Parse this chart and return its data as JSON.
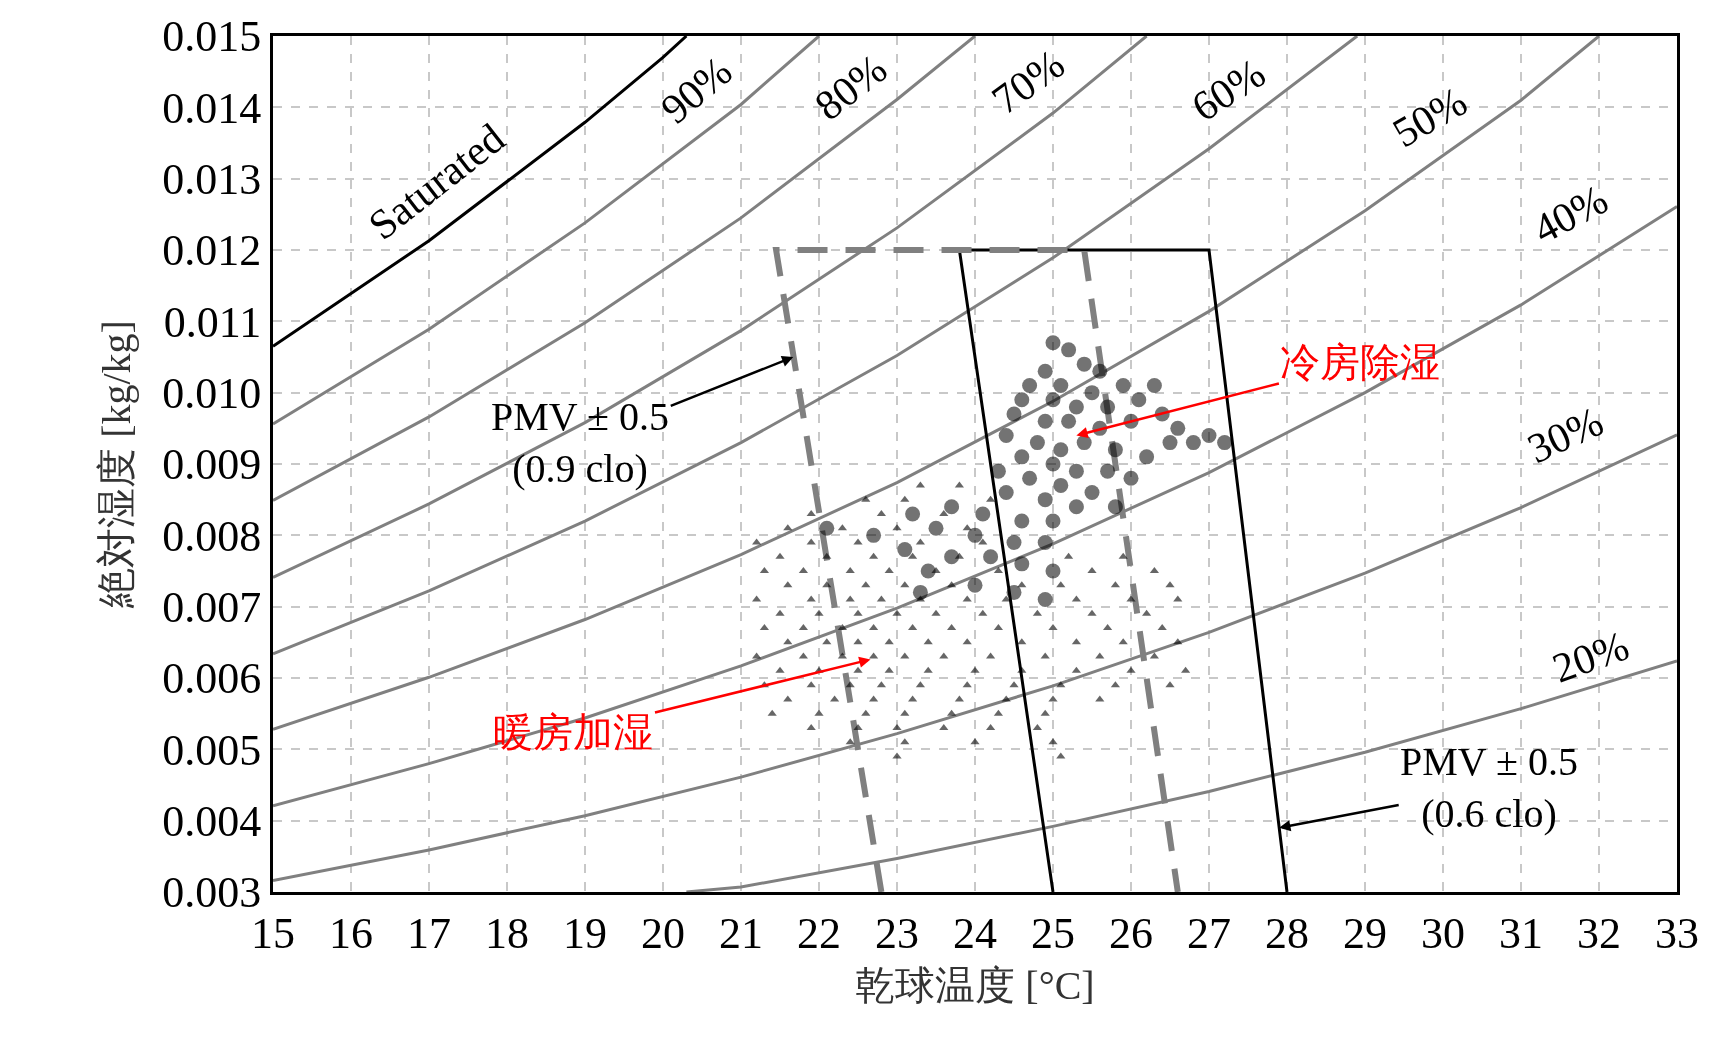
{
  "chart_data": {
    "type": "line",
    "xlabel": "乾球温度 [°C]",
    "ylabel": "絶対湿度 [kg/kg]",
    "xlim": [
      15,
      33
    ],
    "xticks": [
      15,
      16,
      17,
      18,
      19,
      20,
      21,
      22,
      23,
      24,
      25,
      26,
      27,
      28,
      29,
      30,
      31,
      32,
      33
    ],
    "ylim": [
      0.003,
      0.015
    ],
    "yticks": [
      0.003,
      0.004,
      0.005,
      0.006,
      0.007,
      0.008,
      0.009,
      {
        "value": 0.01,
        "label": "0.010"
      },
      0.011,
      0.012,
      0.013,
      0.014,
      0.015
    ],
    "grid": true,
    "series": [
      {
        "type": "line",
        "color": "#000000",
        "x": [
          15,
          17,
          19,
          20,
          20.3
        ],
        "values": [
          0.01065,
          0.01213,
          0.01379,
          0.0147,
          0.015
        ]
      },
      {
        "type": "line",
        "color": "#808080",
        "x": [
          15,
          17,
          19,
          21,
          22
        ],
        "values": [
          0.00956,
          0.01089,
          0.01238,
          0.01404,
          0.015
        ]
      },
      {
        "type": "line",
        "color": "#808080",
        "x": [
          15,
          17,
          19,
          21,
          23,
          24
        ],
        "values": [
          0.00849,
          0.00966,
          0.01098,
          0.01245,
          0.01411,
          0.015
        ]
      },
      {
        "type": "line",
        "color": "#808080",
        "x": [
          15,
          17,
          19,
          21,
          23,
          25,
          26.2
        ],
        "values": [
          0.00741,
          0.00844,
          0.00958,
          0.01087,
          0.01231,
          0.01392,
          0.015
        ]
      },
      {
        "type": "line",
        "color": "#808080",
        "x": [
          15,
          17,
          19,
          21,
          23,
          25,
          27,
          28.9
        ],
        "values": [
          0.00634,
          0.00722,
          0.0082,
          0.0093,
          0.01052,
          0.01189,
          0.01342,
          0.015
        ]
      },
      {
        "type": "line",
        "color": "#808080",
        "x": [
          15,
          17,
          19,
          21,
          23,
          25,
          27,
          29,
          31,
          32
        ],
        "values": [
          0.00528,
          0.00601,
          0.00682,
          0.00773,
          0.00874,
          0.00988,
          0.01114,
          0.01255,
          0.0141,
          0.015
        ]
      },
      {
        "type": "line",
        "color": "#808080",
        "x": [
          15,
          17,
          19,
          21,
          23,
          25,
          27,
          29,
          31,
          33
        ],
        "values": [
          0.00421,
          0.0048,
          0.00544,
          0.00617,
          0.00698,
          0.00788,
          0.00888,
          0.01,
          0.01123,
          0.01261
        ]
      },
      {
        "type": "line",
        "color": "#808080",
        "x": [
          15,
          17,
          19,
          21,
          23,
          25,
          27,
          29,
          31,
          33
        ],
        "values": [
          0.00316,
          0.00359,
          0.00407,
          0.00461,
          0.00522,
          0.00589,
          0.00664,
          0.00747,
          0.00839,
          0.00941
        ]
      },
      {
        "type": "line",
        "color": "#808080",
        "x": [
          20.3,
          21,
          23,
          25,
          27,
          29,
          31,
          33
        ],
        "values": [
          0.003,
          0.00307,
          0.00347,
          0.00392,
          0.00441,
          0.00496,
          0.00557,
          0.00624
        ]
      },
      {
        "color": "#000000",
        "line_style": "solid",
        "x": [
          25.0,
          23.8,
          27.0,
          28.0
        ],
        "values": [
          0.003,
          0.012,
          0.012,
          0.003
        ]
      },
      {
        "type": "line",
        "color": "#808080",
        "line_style": "dashed",
        "x": [
          22.8,
          21.45,
          25.4,
          26.6
        ],
        "values": [
          0.003,
          0.012,
          0.012,
          0.003
        ]
      },
      {
        "type": "scatter",
        "marker": "triangle",
        "color": "#000000",
        "x": [
          23.3,
          23.8,
          22.6,
          23.1,
          24.2,
          21.9,
          22.8,
          23.6,
          21.6,
          22.3,
          23.0,
          23.9,
          21.2,
          21.9,
          22.5,
          23.3,
          24.1,
          21.5,
          22.1,
          22.7,
          23.2,
          23.8,
          25.2,
          25.9,
          21.3,
          21.8,
          22.4,
          22.9,
          23.5,
          24.3,
          25.5,
          26.3,
          21.6,
          22.1,
          22.6,
          23.1,
          23.7,
          24.6,
          25.1,
          25.8,
          26.5,
          21.2,
          21.9,
          22.4,
          22.8,
          23.3,
          23.9,
          24.4,
          25.3,
          26.0,
          26.6,
          21.5,
          22.0,
          22.5,
          23.0,
          23.5,
          24.1,
          24.8,
          25.5,
          26.2,
          21.3,
          21.8,
          22.3,
          22.7,
          23.2,
          23.7,
          24.3,
          25.0,
          25.7,
          26.4,
          21.6,
          22.1,
          22.5,
          22.9,
          23.4,
          23.9,
          24.6,
          25.3,
          25.9,
          26.6,
          21.2,
          21.8,
          22.3,
          22.7,
          23.1,
          23.6,
          24.2,
          24.9,
          25.6,
          26.3,
          21.5,
          22.0,
          22.5,
          22.9,
          23.4,
          24.0,
          24.6,
          25.3,
          26.0,
          26.7,
          21.3,
          21.9,
          22.4,
          22.8,
          23.3,
          23.9,
          24.5,
          25.1,
          25.8,
          26.5,
          21.6,
          22.2,
          22.7,
          23.2,
          23.8,
          24.4,
          25.0,
          25.6,
          21.4,
          22.0,
          22.6,
          23.1,
          23.7,
          24.3,
          24.9,
          21.9,
          22.5,
          23.0,
          23.6,
          24.2,
          24.8,
          22.4,
          23.1,
          24.0,
          25.0,
          23.0,
          25.1
        ],
        "values": [
          0.0087,
          0.0087,
          0.0085,
          0.0085,
          0.0085,
          0.0083,
          0.0083,
          0.0083,
          0.0081,
          0.0081,
          0.0081,
          0.0081,
          0.0079,
          0.0079,
          0.0079,
          0.0079,
          0.0079,
          0.0077,
          0.0077,
          0.0077,
          0.0077,
          0.0077,
          0.0077,
          0.0077,
          0.0075,
          0.0075,
          0.0075,
          0.0075,
          0.0075,
          0.0075,
          0.0075,
          0.0075,
          0.0073,
          0.0073,
          0.0073,
          0.0073,
          0.0073,
          0.0073,
          0.0073,
          0.0073,
          0.0073,
          0.0071,
          0.0071,
          0.0071,
          0.0071,
          0.0071,
          0.0071,
          0.0071,
          0.0071,
          0.0071,
          0.0071,
          0.0069,
          0.0069,
          0.0069,
          0.0069,
          0.0069,
          0.0069,
          0.0069,
          0.0069,
          0.0069,
          0.0067,
          0.0067,
          0.0067,
          0.0067,
          0.0067,
          0.0067,
          0.0067,
          0.0067,
          0.0067,
          0.0067,
          0.0065,
          0.0065,
          0.0065,
          0.0065,
          0.0065,
          0.0065,
          0.0065,
          0.0065,
          0.0065,
          0.0065,
          0.0063,
          0.0063,
          0.0063,
          0.0063,
          0.0063,
          0.0063,
          0.0063,
          0.0063,
          0.0063,
          0.0063,
          0.0061,
          0.0061,
          0.0061,
          0.0061,
          0.0061,
          0.0061,
          0.0061,
          0.0061,
          0.0061,
          0.0061,
          0.0059,
          0.0059,
          0.0059,
          0.0059,
          0.0059,
          0.0059,
          0.0059,
          0.0059,
          0.0059,
          0.0059,
          0.0057,
          0.0057,
          0.0057,
          0.0057,
          0.0057,
          0.0057,
          0.0057,
          0.0057,
          0.0055,
          0.0055,
          0.0055,
          0.0055,
          0.0055,
          0.0055,
          0.0055,
          0.0053,
          0.0053,
          0.0053,
          0.0053,
          0.0053,
          0.0053,
          0.0051,
          0.0051,
          0.0051,
          0.0051,
          0.0049,
          0.0049
        ]
      },
      {
        "type": "scatter",
        "marker": "circle",
        "color": "#000000",
        "x": [
          25.0,
          25.2,
          25.4,
          24.9,
          25.6,
          24.7,
          25.1,
          25.5,
          25.9,
          24.6,
          25.0,
          25.3,
          25.7,
          26.1,
          24.5,
          24.9,
          25.2,
          25.6,
          26.0,
          26.4,
          26.6,
          27.0,
          27.2,
          26.8,
          24.4,
          24.8,
          25.1,
          25.4,
          25.8,
          26.2,
          24.6,
          25.0,
          25.3,
          25.7,
          26.0,
          24.3,
          24.7,
          25.1,
          25.5,
          24.4,
          24.9,
          25.3,
          25.8,
          23.7,
          24.1,
          24.6,
          25.0,
          23.2,
          23.5,
          24.0,
          24.5,
          24.9,
          22.7,
          23.1,
          23.7,
          24.2,
          24.6,
          25.0,
          23.4,
          24.0,
          24.5,
          24.9,
          23.3,
          22.1,
          26.3,
          26.5
        ],
        "values": [
          0.0107,
          0.0106,
          0.0104,
          0.0103,
          0.0103,
          0.0101,
          0.0101,
          0.01,
          0.0101,
          0.0099,
          0.0099,
          0.0098,
          0.0098,
          0.0099,
          0.0097,
          0.0096,
          0.0096,
          0.0095,
          0.0096,
          0.0097,
          0.0095,
          0.0094,
          0.0093,
          0.0093,
          0.0094,
          0.0093,
          0.0092,
          0.0093,
          0.0092,
          0.0091,
          0.0091,
          0.009,
          0.0089,
          0.0089,
          0.0088,
          0.0089,
          0.0088,
          0.0087,
          0.0086,
          0.0086,
          0.0085,
          0.0084,
          0.0084,
          0.0084,
          0.0083,
          0.0082,
          0.0082,
          0.0083,
          0.0081,
          0.008,
          0.0079,
          0.0079,
          0.008,
          0.0078,
          0.0077,
          0.0077,
          0.0076,
          0.0075,
          0.0075,
          0.0073,
          0.0072,
          0.0071,
          0.0072,
          0.0081,
          0.0101,
          0.0093
        ]
      }
    ],
    "annotations": [
      "Saturated",
      "90%",
      "80%",
      "70%",
      "60%",
      "50%",
      "40%",
      "30%",
      "20%",
      {
        "text": "PMV ± 0.5\n(0.9 clo)",
        "x": 21.67,
        "y": 0.0105
      },
      {
        "text": "冷房除湿",
        "x": 25.3,
        "y": 0.0094
      },
      {
        "text": "暖房加湿",
        "x": 22.66,
        "y": 0.00626
      },
      {
        "text": "PMV ± 0.5\n(0.6 clo)",
        "x": 27.9,
        "y": 0.0039
      }
    ]
  }
}
